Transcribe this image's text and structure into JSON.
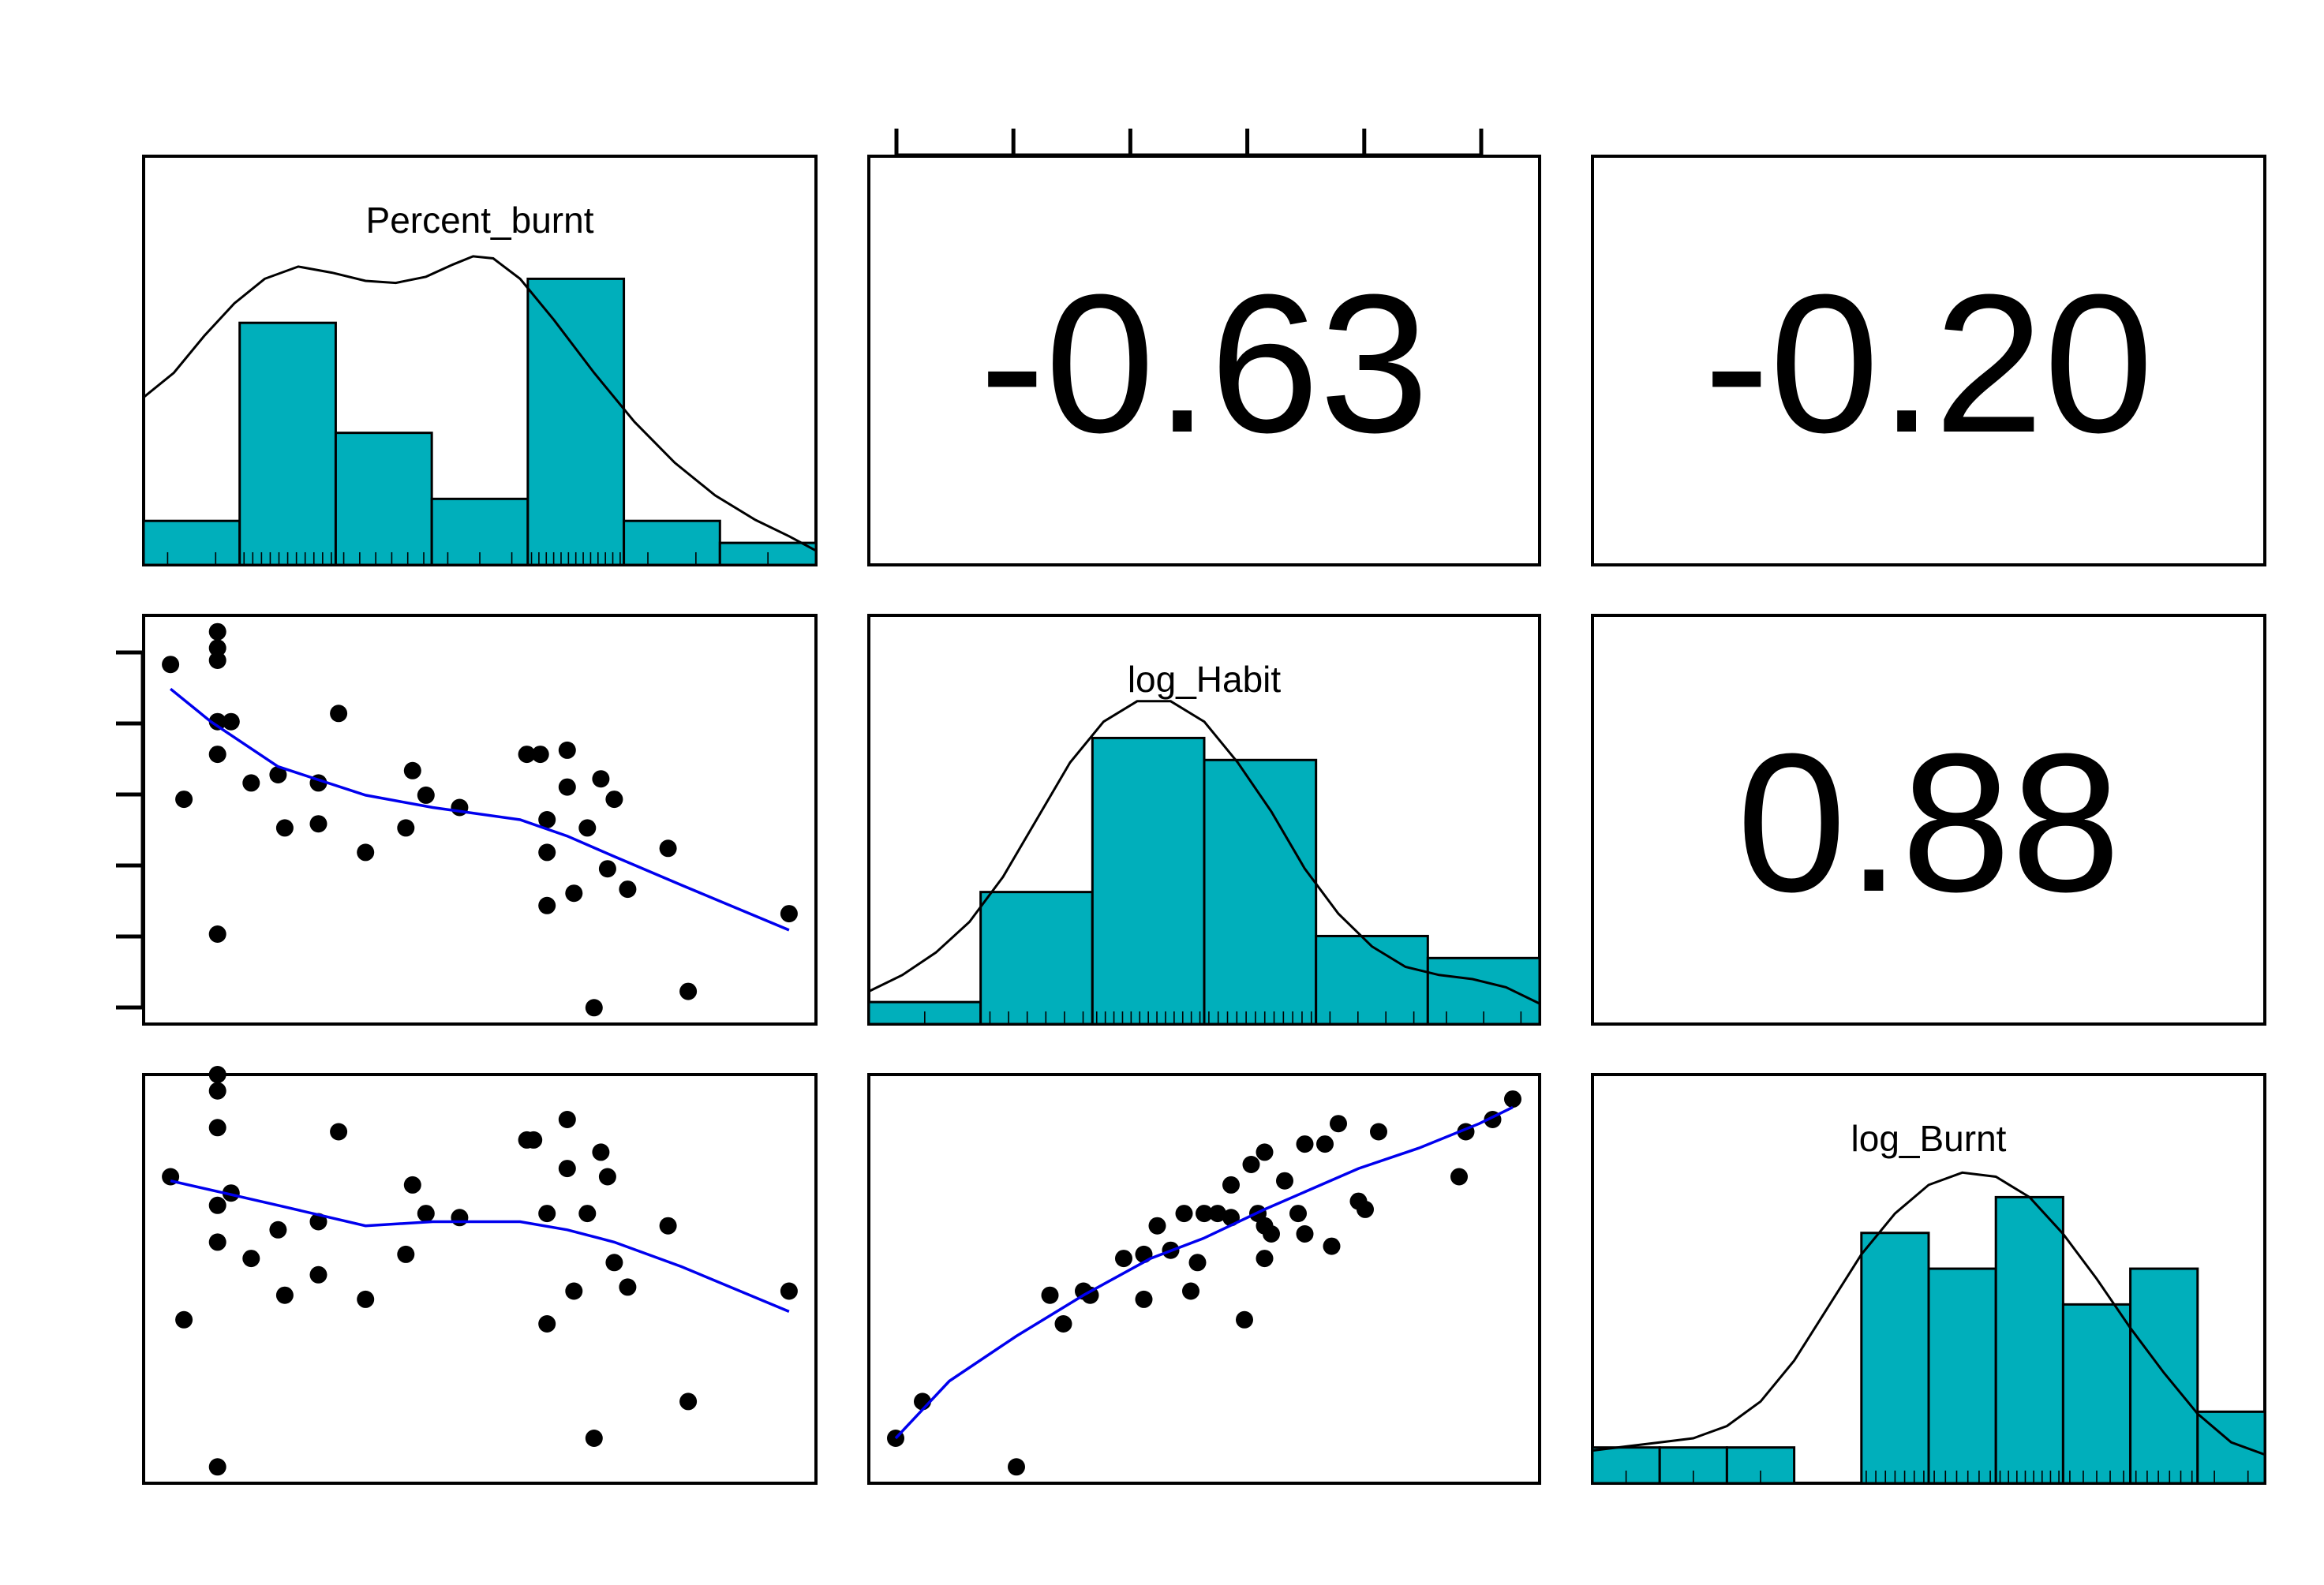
{
  "chart_data": {
    "type": "scatter",
    "kind": "scatterplot-matrix",
    "variables": [
      "Percent_burnt",
      "log_Habit",
      "log_Burnt"
    ],
    "colors": {
      "histogram": "#00afbb",
      "smooth": "#0000ee",
      "points": "#000000",
      "density": "#000000"
    },
    "correlations": [
      {
        "row": 0,
        "col": 1,
        "label": "-0.63"
      },
      {
        "row": 0,
        "col": 2,
        "label": "-0.20"
      },
      {
        "row": 1,
        "col": 2,
        "label": "0.88"
      }
    ],
    "histograms": [
      {
        "variable": "Percent_burnt",
        "counts": [
          2,
          11,
          6,
          3,
          13,
          2,
          1
        ],
        "density": [
          [
            0.0,
            0.41
          ],
          [
            0.045,
            0.47
          ],
          [
            0.09,
            0.56
          ],
          [
            0.135,
            0.64
          ],
          [
            0.18,
            0.7
          ],
          [
            0.23,
            0.73
          ],
          [
            0.28,
            0.715
          ],
          [
            0.33,
            0.695
          ],
          [
            0.375,
            0.69
          ],
          [
            0.42,
            0.705
          ],
          [
            0.46,
            0.735
          ],
          [
            0.49,
            0.755
          ],
          [
            0.52,
            0.75
          ],
          [
            0.56,
            0.7
          ],
          [
            0.61,
            0.6
          ],
          [
            0.67,
            0.47
          ],
          [
            0.73,
            0.35
          ],
          [
            0.79,
            0.25
          ],
          [
            0.85,
            0.17
          ],
          [
            0.91,
            0.11
          ],
          [
            0.96,
            0.07
          ],
          [
            1.0,
            0.035
          ]
        ]
      },
      {
        "variable": "log_Habit",
        "counts": [
          1,
          6,
          13,
          12,
          4,
          3
        ],
        "density": [
          [
            0.0,
            0.08
          ],
          [
            0.05,
            0.12
          ],
          [
            0.1,
            0.175
          ],
          [
            0.15,
            0.25
          ],
          [
            0.2,
            0.36
          ],
          [
            0.25,
            0.5
          ],
          [
            0.3,
            0.64
          ],
          [
            0.35,
            0.74
          ],
          [
            0.4,
            0.79
          ],
          [
            0.45,
            0.79
          ],
          [
            0.5,
            0.74
          ],
          [
            0.55,
            0.64
          ],
          [
            0.6,
            0.52
          ],
          [
            0.65,
            0.38
          ],
          [
            0.7,
            0.27
          ],
          [
            0.75,
            0.19
          ],
          [
            0.8,
            0.14
          ],
          [
            0.85,
            0.12
          ],
          [
            0.9,
            0.11
          ],
          [
            0.95,
            0.09
          ],
          [
            1.0,
            0.05
          ]
        ]
      },
      {
        "variable": "log_Burnt",
        "counts": [
          1,
          1,
          1,
          0,
          7,
          6,
          8,
          5,
          6,
          2
        ],
        "density": [
          [
            0.0,
            0.08
          ],
          [
            0.05,
            0.09
          ],
          [
            0.1,
            0.1
          ],
          [
            0.15,
            0.11
          ],
          [
            0.2,
            0.14
          ],
          [
            0.25,
            0.2
          ],
          [
            0.3,
            0.3
          ],
          [
            0.35,
            0.43
          ],
          [
            0.4,
            0.56
          ],
          [
            0.45,
            0.66
          ],
          [
            0.5,
            0.73
          ],
          [
            0.55,
            0.76
          ],
          [
            0.6,
            0.75
          ],
          [
            0.65,
            0.7
          ],
          [
            0.7,
            0.61
          ],
          [
            0.75,
            0.5
          ],
          [
            0.8,
            0.38
          ],
          [
            0.85,
            0.27
          ],
          [
            0.9,
            0.17
          ],
          [
            0.95,
            0.1
          ],
          [
            1.0,
            0.07
          ]
        ]
      }
    ],
    "scatter": [
      {
        "x": "Percent_burnt",
        "y": "log_Habit",
        "points": [
          [
            0.04,
            0.88
          ],
          [
            0.06,
            0.55
          ],
          [
            0.11,
            0.92
          ],
          [
            0.11,
            0.74
          ],
          [
            0.11,
            0.66
          ],
          [
            0.11,
            0.96
          ],
          [
            0.11,
            0.89
          ],
          [
            0.11,
            0.22
          ],
          [
            0.13,
            0.74
          ],
          [
            0.16,
            0.59
          ],
          [
            0.2,
            0.61
          ],
          [
            0.21,
            0.48
          ],
          [
            0.26,
            0.49
          ],
          [
            0.26,
            0.59
          ],
          [
            0.29,
            0.76
          ],
          [
            0.33,
            0.42
          ],
          [
            0.39,
            0.48
          ],
          [
            0.4,
            0.62
          ],
          [
            0.42,
            0.56
          ],
          [
            0.47,
            0.53
          ],
          [
            0.57,
            0.66
          ],
          [
            0.59,
            0.66
          ],
          [
            0.6,
            0.5
          ],
          [
            0.6,
            0.42
          ],
          [
            0.6,
            0.29
          ],
          [
            0.63,
            0.58
          ],
          [
            0.63,
            0.67
          ],
          [
            0.64,
            0.32
          ],
          [
            0.66,
            0.48
          ],
          [
            0.67,
            0.04
          ],
          [
            0.68,
            0.6
          ],
          [
            0.69,
            0.38
          ],
          [
            0.7,
            0.55
          ],
          [
            0.72,
            0.33
          ],
          [
            0.78,
            0.43
          ],
          [
            0.81,
            0.08
          ],
          [
            0.96,
            0.27
          ]
        ],
        "smooth": [
          [
            0.04,
            0.82
          ],
          [
            0.1,
            0.74
          ],
          [
            0.2,
            0.63
          ],
          [
            0.33,
            0.56
          ],
          [
            0.43,
            0.53
          ],
          [
            0.56,
            0.5
          ],
          [
            0.63,
            0.46
          ],
          [
            0.7,
            0.41
          ],
          [
            0.8,
            0.34
          ],
          [
            0.96,
            0.23
          ]
        ]
      },
      {
        "x": "Percent_burnt",
        "y": "log_Burnt",
        "points": [
          [
            0.04,
            0.75
          ],
          [
            0.06,
            0.4
          ],
          [
            0.11,
            1.0
          ],
          [
            0.11,
            0.96
          ],
          [
            0.11,
            0.87
          ],
          [
            0.11,
            0.59
          ],
          [
            0.11,
            0.68
          ],
          [
            0.11,
            0.04
          ],
          [
            0.13,
            0.71
          ],
          [
            0.16,
            0.55
          ],
          [
            0.2,
            0.62
          ],
          [
            0.21,
            0.46
          ],
          [
            0.26,
            0.51
          ],
          [
            0.26,
            0.64
          ],
          [
            0.29,
            0.86
          ],
          [
            0.33,
            0.45
          ],
          [
            0.39,
            0.56
          ],
          [
            0.4,
            0.73
          ],
          [
            0.42,
            0.66
          ],
          [
            0.47,
            0.65
          ],
          [
            0.57,
            0.84
          ],
          [
            0.58,
            0.84
          ],
          [
            0.6,
            0.39
          ],
          [
            0.6,
            0.66
          ],
          [
            0.63,
            0.89
          ],
          [
            0.63,
            0.77
          ],
          [
            0.64,
            0.47
          ],
          [
            0.66,
            0.66
          ],
          [
            0.67,
            0.11
          ],
          [
            0.68,
            0.81
          ],
          [
            0.69,
            0.75
          ],
          [
            0.7,
            0.54
          ],
          [
            0.72,
            0.48
          ],
          [
            0.78,
            0.63
          ],
          [
            0.81,
            0.2
          ],
          [
            0.96,
            0.47
          ]
        ],
        "smooth": [
          [
            0.04,
            0.74
          ],
          [
            0.12,
            0.71
          ],
          [
            0.2,
            0.68
          ],
          [
            0.33,
            0.63
          ],
          [
            0.43,
            0.64
          ],
          [
            0.56,
            0.64
          ],
          [
            0.63,
            0.62
          ],
          [
            0.7,
            0.59
          ],
          [
            0.8,
            0.53
          ],
          [
            0.96,
            0.42
          ]
        ]
      },
      {
        "x": "log_Habit",
        "y": "log_Burnt",
        "points": [
          [
            0.04,
            0.11
          ],
          [
            0.08,
            0.2
          ],
          [
            0.22,
            0.04
          ],
          [
            0.27,
            0.46
          ],
          [
            0.29,
            0.39
          ],
          [
            0.32,
            0.47
          ],
          [
            0.33,
            0.46
          ],
          [
            0.38,
            0.55
          ],
          [
            0.41,
            0.56
          ],
          [
            0.41,
            0.45
          ],
          [
            0.43,
            0.63
          ],
          [
            0.45,
            0.57
          ],
          [
            0.47,
            0.66
          ],
          [
            0.48,
            0.47
          ],
          [
            0.49,
            0.54
          ],
          [
            0.5,
            0.66
          ],
          [
            0.52,
            0.66
          ],
          [
            0.54,
            0.65
          ],
          [
            0.54,
            0.73
          ],
          [
            0.56,
            0.4
          ],
          [
            0.57,
            0.78
          ],
          [
            0.58,
            0.66
          ],
          [
            0.59,
            0.55
          ],
          [
            0.59,
            0.81
          ],
          [
            0.59,
            0.63
          ],
          [
            0.6,
            0.61
          ],
          [
            0.62,
            0.74
          ],
          [
            0.64,
            0.66
          ],
          [
            0.65,
            0.61
          ],
          [
            0.65,
            0.83
          ],
          [
            0.68,
            0.83
          ],
          [
            0.69,
            0.58
          ],
          [
            0.7,
            0.88
          ],
          [
            0.73,
            0.69
          ],
          [
            0.74,
            0.67
          ],
          [
            0.76,
            0.86
          ],
          [
            0.88,
            0.75
          ],
          [
            0.89,
            0.86
          ],
          [
            0.93,
            0.89
          ],
          [
            0.96,
            0.94
          ]
        ],
        "smooth": [
          [
            0.04,
            0.11
          ],
          [
            0.12,
            0.25
          ],
          [
            0.22,
            0.36
          ],
          [
            0.32,
            0.46
          ],
          [
            0.42,
            0.55
          ],
          [
            0.5,
            0.6
          ],
          [
            0.59,
            0.67
          ],
          [
            0.66,
            0.72
          ],
          [
            0.73,
            0.77
          ],
          [
            0.82,
            0.82
          ],
          [
            0.91,
            0.88
          ],
          [
            0.96,
            0.92
          ]
        ]
      }
    ]
  }
}
